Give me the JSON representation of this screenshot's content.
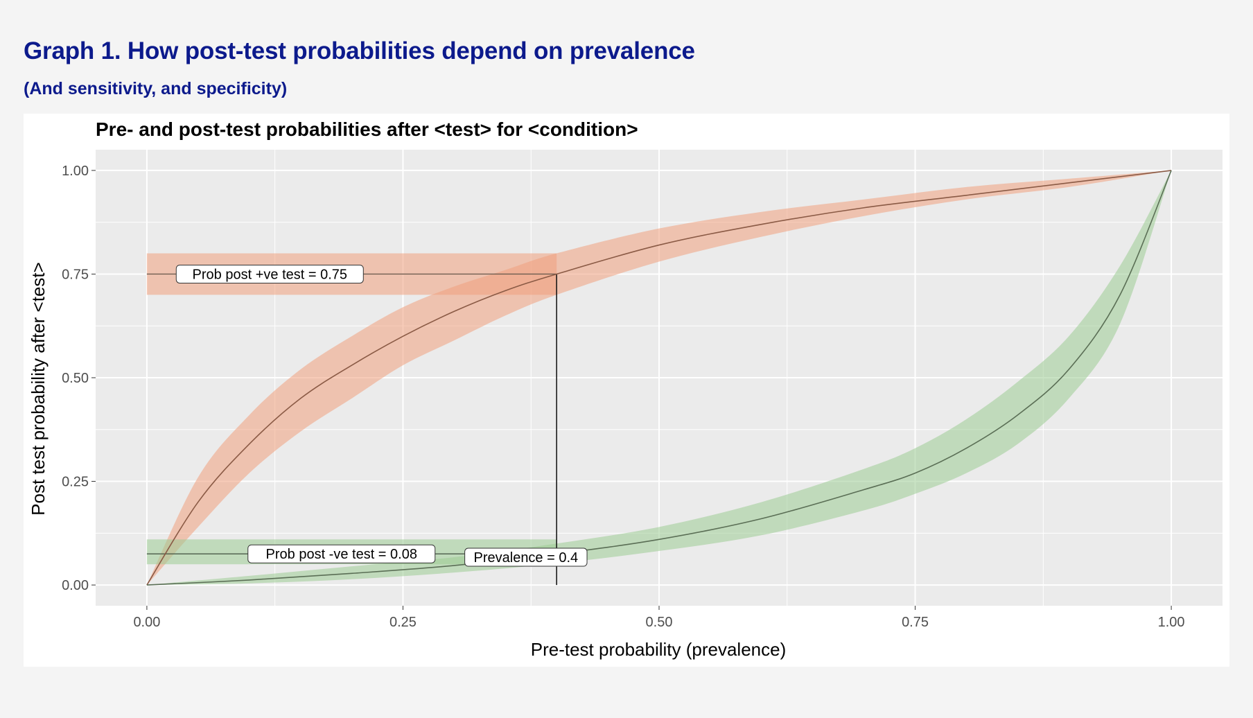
{
  "header": {
    "title_prefix": "Graph 1.",
    "title_rest": " How post-test probabilities depend on prevalence",
    "subtitle": "(And sensitivity, and specificity)"
  },
  "colors": {
    "positive_band": "#f0a07e",
    "negative_band": "#9dcc93",
    "panel_bg": "#ebebeb",
    "grid": "#ffffff",
    "curve_line": "#6b5b4e"
  },
  "chart_data": {
    "type": "line",
    "title": "Pre- and post-test probabilities after <test> for <condition>",
    "xlabel": "Pre-test probability (prevalence)",
    "ylabel": "Post test probability after <test>",
    "xlim": [
      -0.05,
      1.05
    ],
    "ylim": [
      -0.05,
      1.05
    ],
    "x_ticks": [
      0,
      0.25,
      0.5,
      0.75,
      1
    ],
    "x_tick_labels": [
      "0.00",
      "0.25",
      "0.50",
      "0.75",
      "1.00"
    ],
    "y_ticks": [
      0,
      0.25,
      0.5,
      0.75,
      1
    ],
    "y_tick_labels": [
      "0.00",
      "0.25",
      "0.50",
      "0.75",
      "1.00"
    ],
    "grid": true,
    "series": [
      {
        "key": "positive",
        "x": [
          0,
          0.05,
          0.1,
          0.15,
          0.2,
          0.25,
          0.3,
          0.35,
          0.4,
          0.5,
          0.6,
          0.7,
          0.8,
          0.9,
          1.0
        ],
        "y": [
          0,
          0.2,
          0.34,
          0.45,
          0.53,
          0.6,
          0.66,
          0.71,
          0.75,
          0.82,
          0.87,
          0.91,
          0.94,
          0.97,
          1.0
        ],
        "lower": [
          0,
          0.14,
          0.27,
          0.37,
          0.45,
          0.53,
          0.59,
          0.65,
          0.7,
          0.78,
          0.84,
          0.89,
          0.93,
          0.96,
          1.0
        ],
        "upper": [
          0,
          0.26,
          0.41,
          0.52,
          0.6,
          0.67,
          0.72,
          0.76,
          0.8,
          0.86,
          0.9,
          0.93,
          0.96,
          0.98,
          1.0
        ]
      },
      {
        "key": "negative",
        "x": [
          0,
          0.1,
          0.2,
          0.3,
          0.4,
          0.5,
          0.6,
          0.7,
          0.75,
          0.8,
          0.85,
          0.9,
          0.95,
          1.0
        ],
        "y": [
          0,
          0.012,
          0.028,
          0.047,
          0.075,
          0.11,
          0.16,
          0.23,
          0.27,
          0.33,
          0.41,
          0.52,
          0.7,
          1.0
        ],
        "lower": [
          0,
          0.004,
          0.014,
          0.03,
          0.052,
          0.082,
          0.12,
          0.18,
          0.22,
          0.27,
          0.34,
          0.45,
          0.63,
          1.0
        ],
        "upper": [
          0,
          0.022,
          0.045,
          0.067,
          0.1,
          0.14,
          0.2,
          0.28,
          0.33,
          0.4,
          0.49,
          0.6,
          0.77,
          1.0
        ]
      }
    ],
    "annotations": {
      "prevalence": 0.4,
      "prob_post_positive": 0.75,
      "prob_post_positive_band": [
        0.7,
        0.8
      ],
      "prob_post_negative": 0.075,
      "prob_post_negative_band": [
        0.05,
        0.11
      ],
      "prevalence_label": "Prevalence = 0.4",
      "positive_label": "Prob post +ve test = 0.75",
      "negative_label": "Prob post -ve test = 0.08",
      "positive_label_x": 0.12,
      "negative_label_x": 0.19,
      "prevalence_label_pos": [
        0.37,
        0.067
      ]
    }
  }
}
